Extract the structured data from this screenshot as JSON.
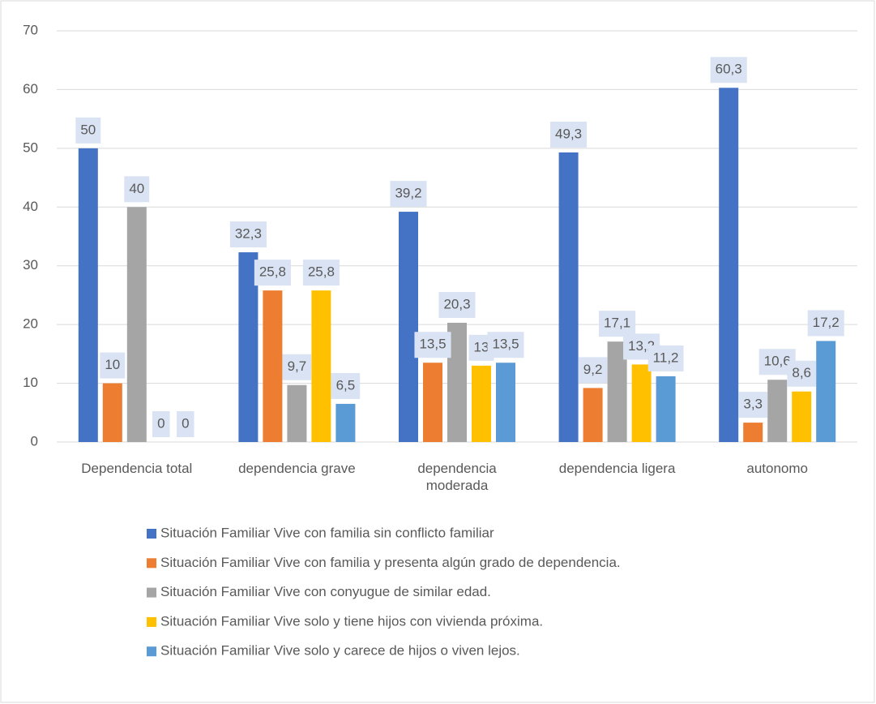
{
  "chart_data": {
    "type": "bar",
    "categories": [
      "Dependencia total",
      "dependencia grave",
      "dependencia moderada",
      "dependencia ligera",
      "autonomo"
    ],
    "series": [
      {
        "name": "Situación Familiar Vive con familia sin conflicto familiar",
        "color": "#4472c4",
        "values": [
          50,
          32.3,
          39.2,
          49.3,
          60.3
        ],
        "value_labels": [
          "50",
          "32,3",
          "39,2",
          "49,3",
          "60,3"
        ]
      },
      {
        "name": "Situación Familiar Vive con familia y presenta algún grado de dependencia.",
        "color": "#ed7d31",
        "values": [
          10,
          25.8,
          13.5,
          9.2,
          3.3
        ],
        "value_labels": [
          "10",
          "25,8",
          "13,5",
          "9,2",
          "3,3"
        ]
      },
      {
        "name": "Situación Familiar Vive con conyugue de similar edad.",
        "color": "#a5a5a5",
        "values": [
          40,
          9.7,
          20.3,
          17.1,
          10.6
        ],
        "value_labels": [
          "40",
          "9,7",
          "20,3",
          "17,1",
          "10,6"
        ]
      },
      {
        "name": "Situación Familiar Vive solo y tiene hijos con vivienda próxima.",
        "color": "#ffc000",
        "values": [
          0,
          25.8,
          13,
          13.2,
          8.6
        ],
        "value_labels": [
          "0",
          "25,8",
          "13",
          "13,2",
          "8,6"
        ]
      },
      {
        "name": "Situación Familiar Vive solo y carece de hijos o viven lejos.",
        "color": "#5b9bd5",
        "values": [
          0,
          6.5,
          13.5,
          11.2,
          17.2
        ],
        "value_labels": [
          "0",
          "6,5",
          "13,5",
          "11,2",
          "17,2"
        ]
      }
    ],
    "ylim": [
      0,
      70
    ],
    "yticks": [
      0,
      10,
      20,
      30,
      40,
      50,
      60,
      70
    ],
    "grid": true,
    "legend": "bottom"
  }
}
